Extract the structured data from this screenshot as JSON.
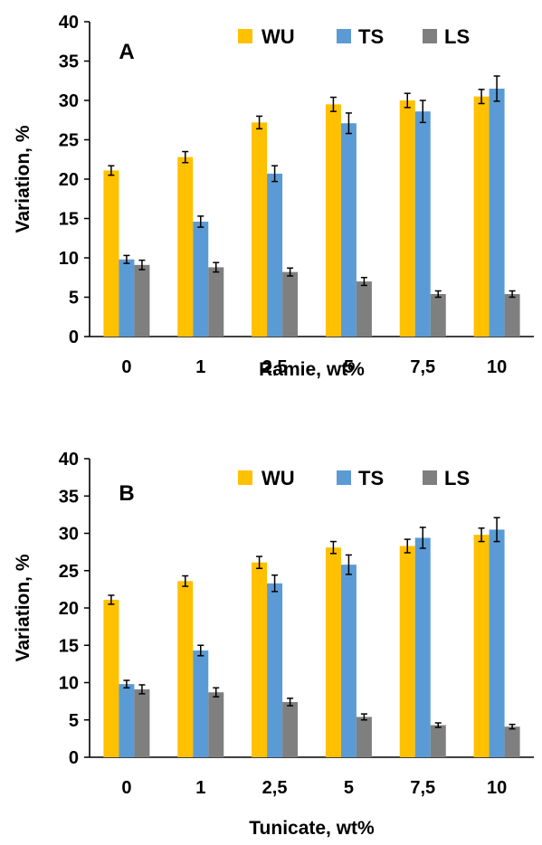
{
  "chart_data": [
    {
      "type": "bar",
      "panel_label": "A",
      "xlabel": "Ramie, wt%",
      "ylabel": "Variation, %",
      "ylim": [
        0,
        40
      ],
      "yticks": [
        0,
        5,
        10,
        15,
        20,
        25,
        30,
        35,
        40
      ],
      "categories": [
        "0",
        "1",
        "2,5",
        "5",
        "7,5",
        "10"
      ],
      "legend_position": "top",
      "grid": false,
      "series": [
        {
          "name": "WU",
          "color": "#FFC000",
          "values": [
            21.1,
            22.8,
            27.2,
            29.5,
            30.0,
            30.5
          ],
          "errors": [
            0.6,
            0.7,
            0.8,
            0.9,
            0.9,
            0.9
          ]
        },
        {
          "name": "TS",
          "color": "#5B9BD5",
          "values": [
            9.8,
            14.6,
            20.7,
            27.1,
            28.6,
            31.5
          ],
          "errors": [
            0.5,
            0.7,
            1.0,
            1.3,
            1.4,
            1.6
          ]
        },
        {
          "name": "LS",
          "color": "#7F7F7F",
          "values": [
            9.1,
            8.8,
            8.2,
            7.0,
            5.4,
            5.4
          ],
          "errors": [
            0.6,
            0.6,
            0.5,
            0.5,
            0.4,
            0.4
          ]
        }
      ]
    },
    {
      "type": "bar",
      "panel_label": "B",
      "xlabel": "Tunicate, wt%",
      "ylabel": "Variation, %",
      "ylim": [
        0,
        40
      ],
      "yticks": [
        0,
        5,
        10,
        15,
        20,
        25,
        30,
        35,
        40
      ],
      "categories": [
        "0",
        "1",
        "2,5",
        "5",
        "7,5",
        "10"
      ],
      "legend_position": "top",
      "grid": false,
      "series": [
        {
          "name": "WU",
          "color": "#FFC000",
          "values": [
            21.1,
            23.6,
            26.1,
            28.1,
            28.3,
            29.8
          ],
          "errors": [
            0.6,
            0.7,
            0.8,
            0.8,
            0.9,
            0.9
          ]
        },
        {
          "name": "TS",
          "color": "#5B9BD5",
          "values": [
            9.8,
            14.3,
            23.3,
            25.8,
            29.4,
            30.5
          ],
          "errors": [
            0.5,
            0.7,
            1.1,
            1.3,
            1.4,
            1.6
          ]
        },
        {
          "name": "LS",
          "color": "#7F7F7F",
          "values": [
            9.1,
            8.7,
            7.4,
            5.4,
            4.3,
            4.1
          ],
          "errors": [
            0.6,
            0.6,
            0.5,
            0.4,
            0.3,
            0.3
          ]
        }
      ]
    }
  ]
}
